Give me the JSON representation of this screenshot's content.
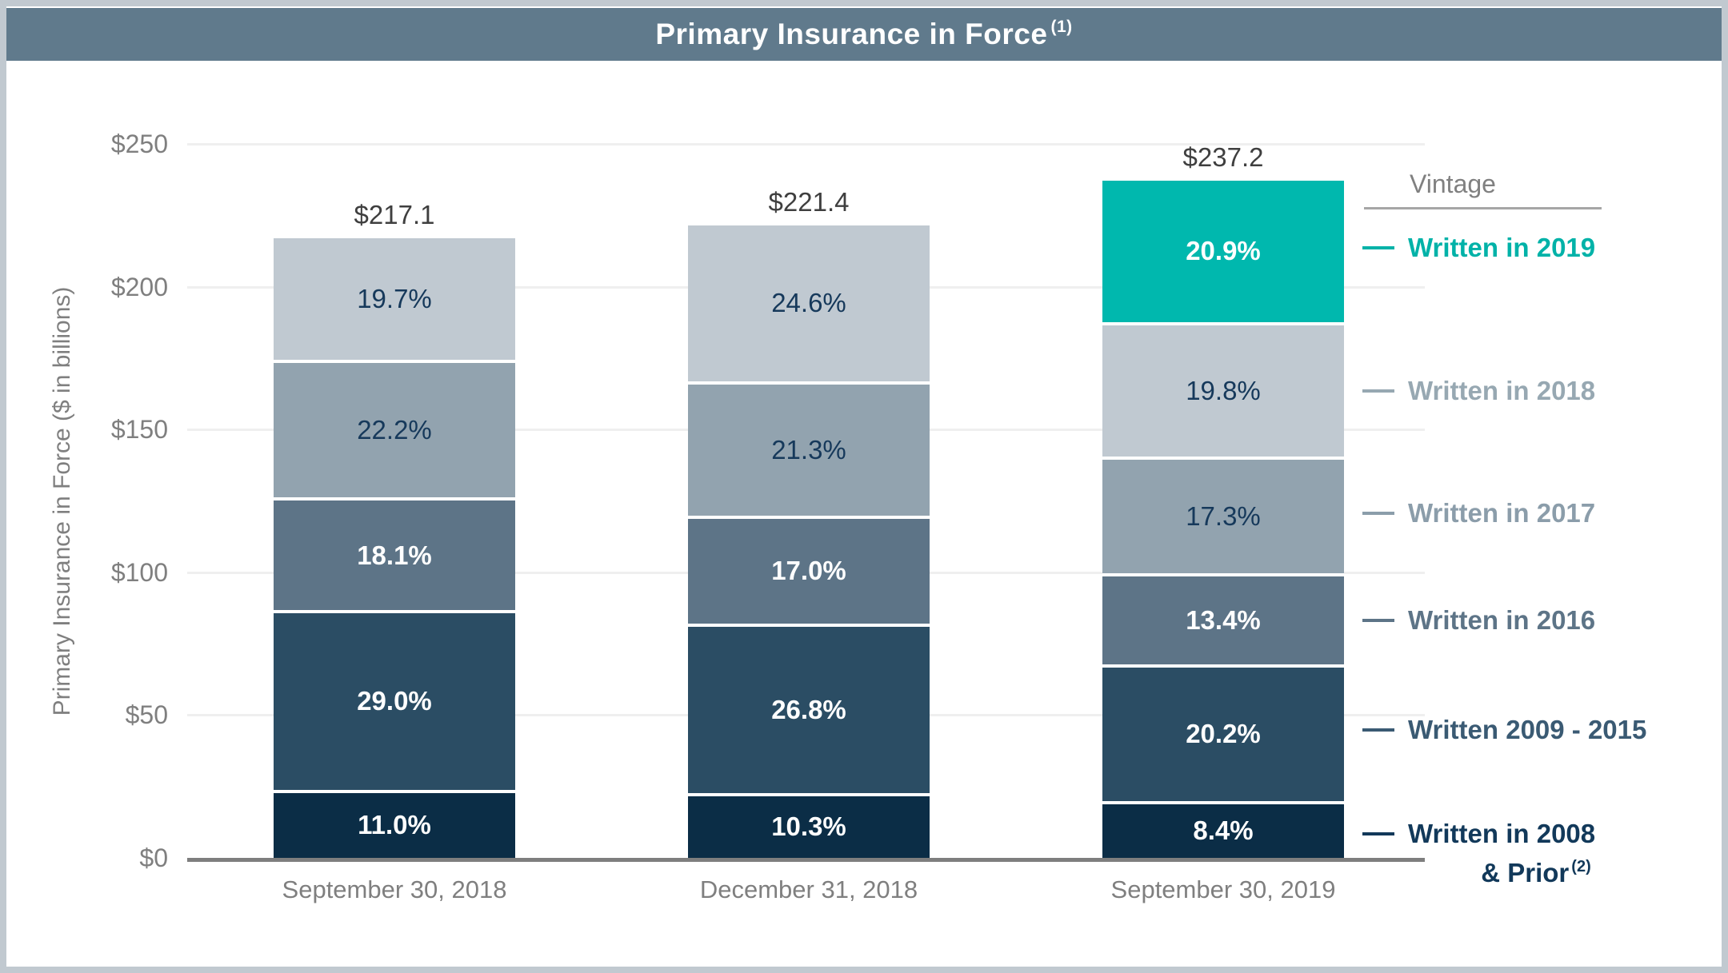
{
  "title": {
    "text": "Primary Insurance in Force",
    "superscript": "(1)"
  },
  "chart_data": {
    "type": "bar",
    "stacked": true,
    "title": "Primary Insurance in Force (1)",
    "ylabel": "Primary Insurance in Force ($ in billions)",
    "ylim": [
      0,
      250
    ],
    "yticks": [
      0,
      50,
      100,
      150,
      200,
      250
    ],
    "ytick_labels": [
      "$0",
      "$50",
      "$100",
      "$150",
      "$200",
      "$250"
    ],
    "grid": "horizontal",
    "legend_position": "right",
    "categories": [
      "September 30, 2018",
      "December 31, 2018",
      "September 30, 2019"
    ],
    "totals": [
      217.1,
      221.4,
      237.2
    ],
    "total_labels": [
      "$217.1",
      "$221.4",
      "$237.2"
    ],
    "series": [
      {
        "name": "Written in 2019",
        "color": "#00b8ae",
        "text_style": "bold-white",
        "values_pct": [
          null,
          null,
          20.9
        ],
        "labels": [
          "",
          "",
          "20.9%"
        ]
      },
      {
        "name": "Written in 2018",
        "color": "#c0c9d1",
        "text_style": "navy",
        "values_pct": [
          19.7,
          24.6,
          19.8
        ],
        "labels": [
          "19.7%",
          "24.6%",
          "19.8%"
        ]
      },
      {
        "name": "Written in 2017",
        "color": "#92a3af",
        "text_style": "navy",
        "values_pct": [
          22.2,
          21.3,
          17.3
        ],
        "labels": [
          "22.2%",
          "21.3%",
          "17.3%"
        ]
      },
      {
        "name": "Written in 2016",
        "color": "#5d7487",
        "text_style": "bold-white",
        "values_pct": [
          18.1,
          17.0,
          13.4
        ],
        "labels": [
          "18.1%",
          "17.0%",
          "13.4%"
        ]
      },
      {
        "name": "Written 2009 - 2015",
        "color": "#2b4d64",
        "text_style": "bold-white",
        "values_pct": [
          29.0,
          26.8,
          20.2
        ],
        "labels": [
          "29.0%",
          "26.8%",
          "20.2%"
        ]
      },
      {
        "name": "Written in 2008 & Prior",
        "color": "#0b2d46",
        "text_style": "bold-white",
        "values_pct": [
          11.0,
          10.3,
          8.4
        ],
        "labels": [
          "11.0%",
          "10.3%",
          "8.4%"
        ]
      }
    ],
    "legend": {
      "header": "Vintage",
      "entries": [
        {
          "label": "Written in 2019",
          "color": "#00b2a8"
        },
        {
          "label": "Written in 2018",
          "color": "#97a8b2"
        },
        {
          "label": "Written in 2017",
          "color": "#8b9daa"
        },
        {
          "label": "Written in 2016",
          "color": "#5d7487"
        },
        {
          "label": "Written 2009 - 2015",
          "color": "#3a5a73"
        },
        {
          "label": "Written in 2008",
          "label_line2": "& Prior",
          "superscript": "(2)",
          "color": "#12395a"
        }
      ]
    }
  }
}
